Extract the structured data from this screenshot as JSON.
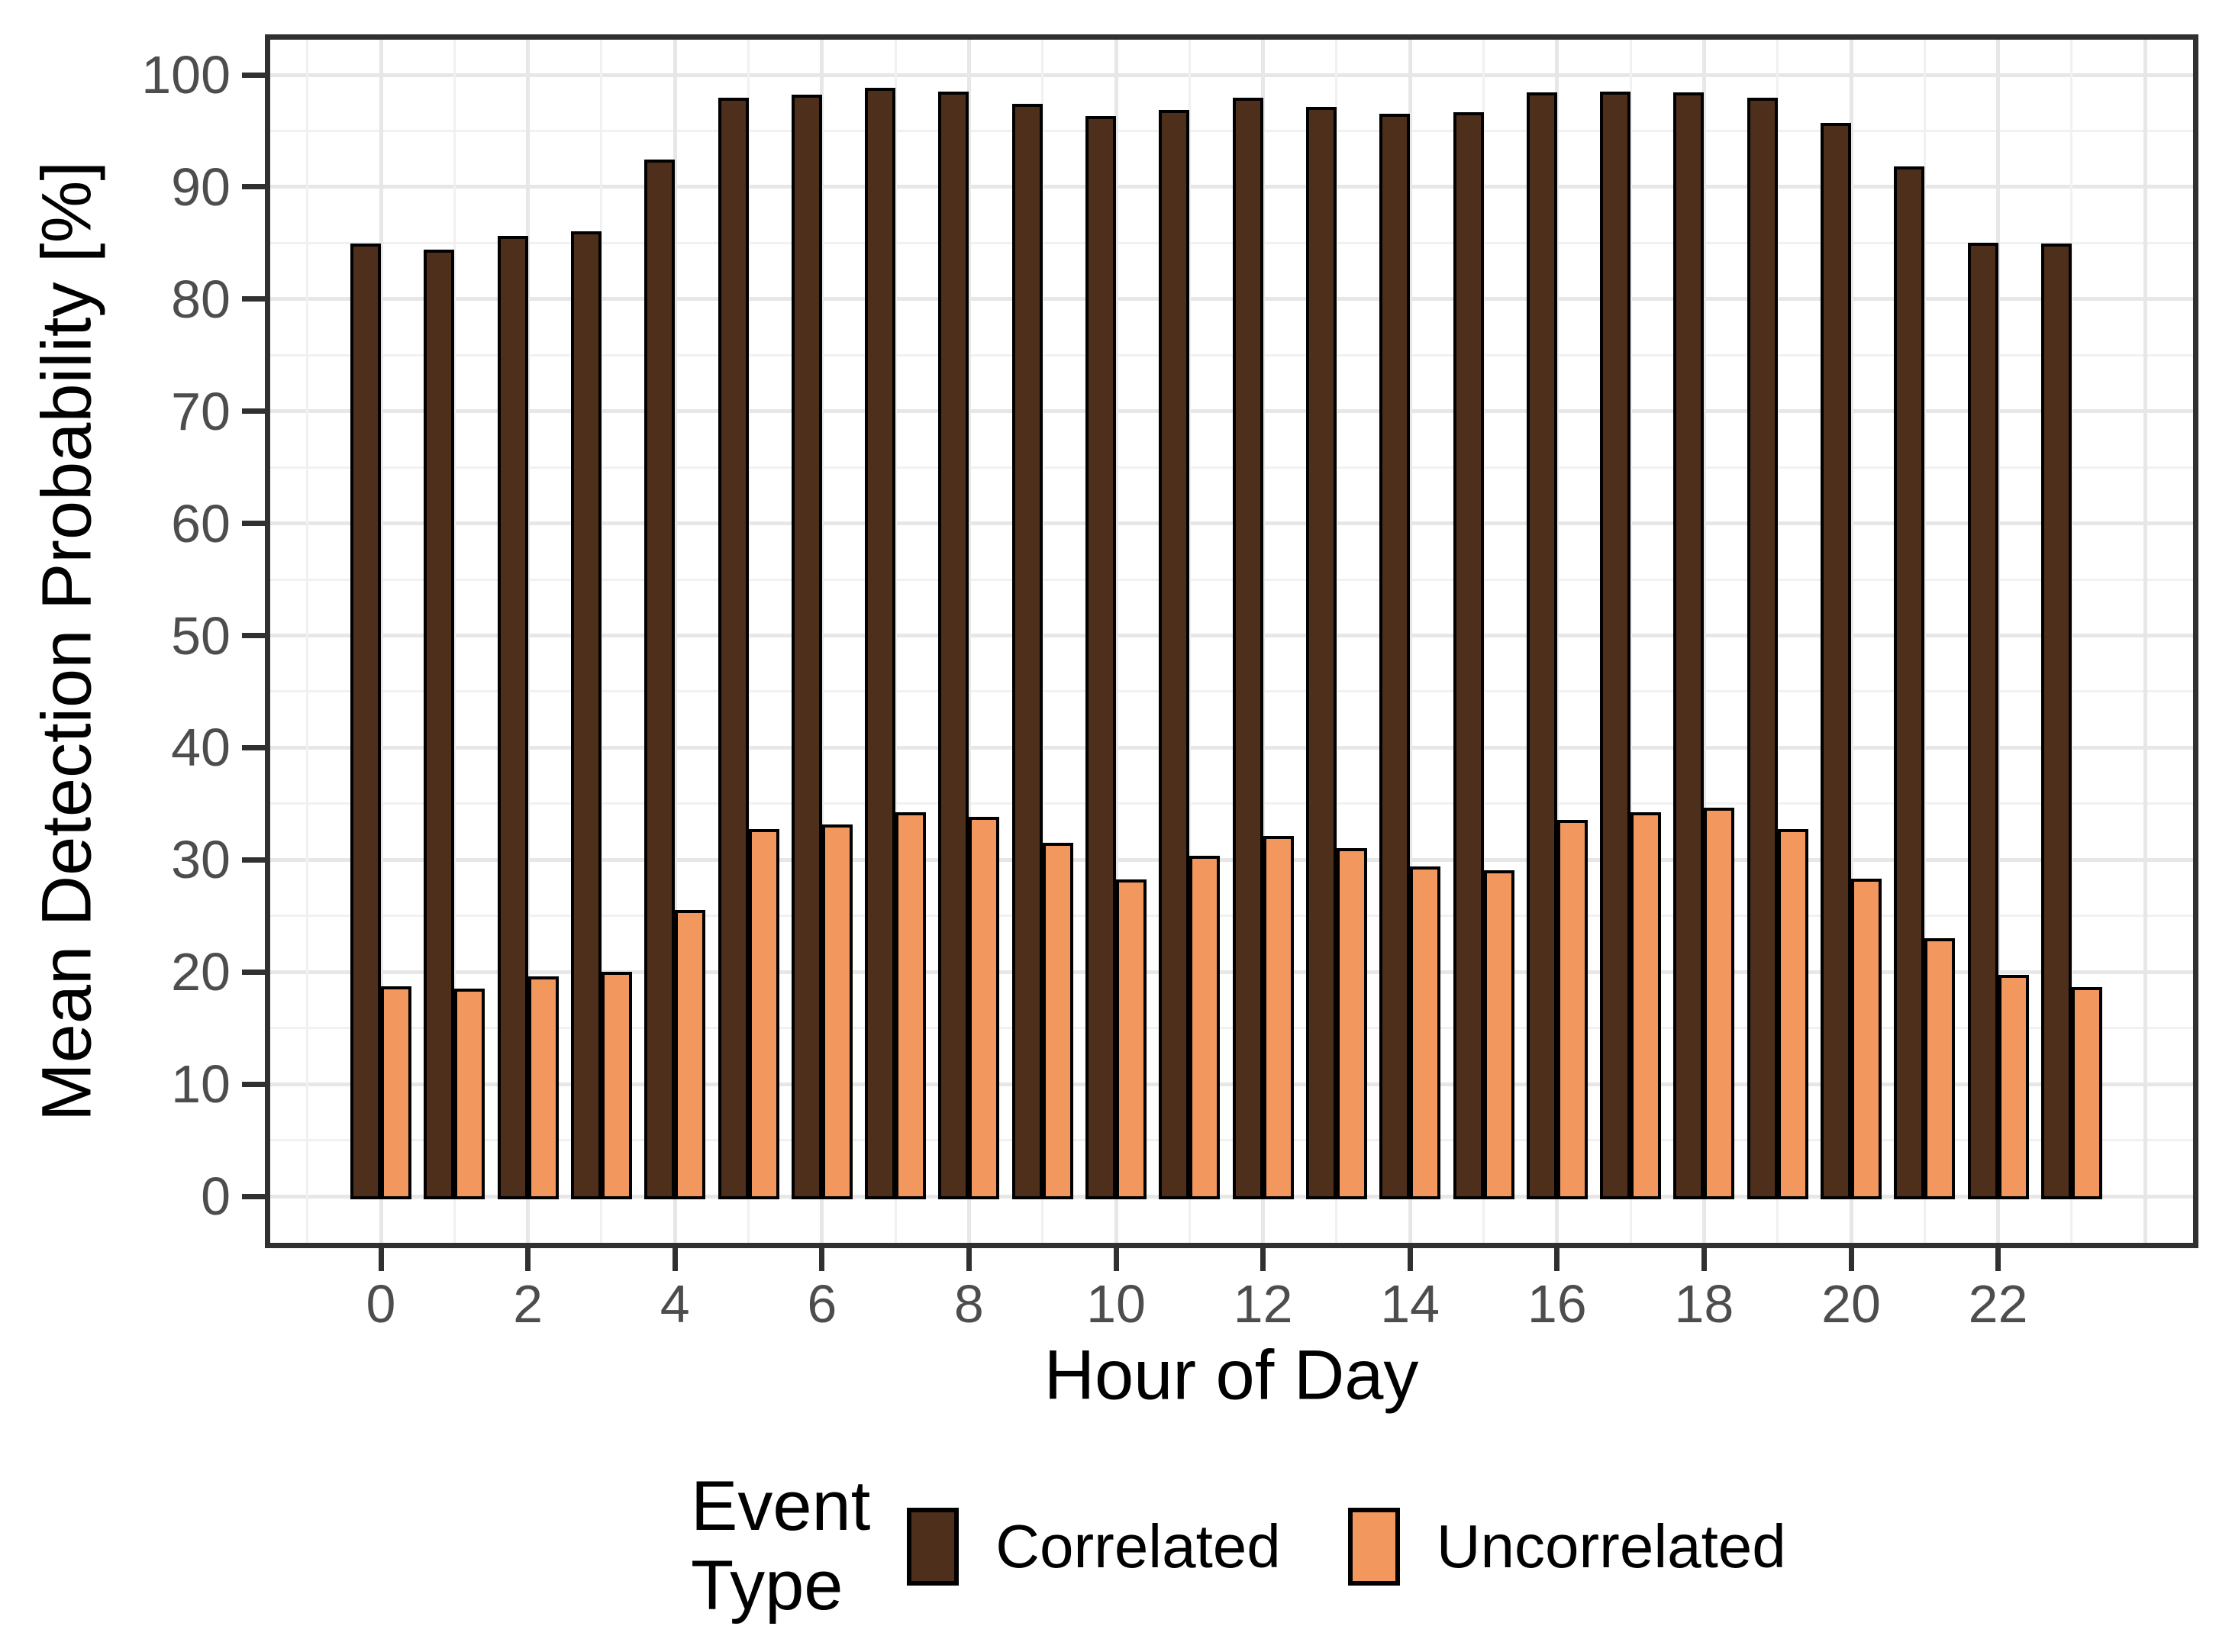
{
  "chart_data": {
    "type": "bar",
    "title": "",
    "xlabel": "Hour of Day",
    "ylabel": "Mean Detection Probability [%]",
    "legend_title": "Event\nType",
    "legend_position": "bottom",
    "grid": true,
    "ylim": [
      0,
      100
    ],
    "xlim": [
      -1.5,
      24.6
    ],
    "categories": [
      0,
      1,
      2,
      3,
      4,
      5,
      6,
      7,
      8,
      9,
      10,
      11,
      12,
      13,
      14,
      15,
      16,
      17,
      18,
      19,
      20,
      21,
      22,
      23
    ],
    "x_tick_labels": [
      0,
      2,
      4,
      6,
      8,
      10,
      12,
      14,
      16,
      18,
      20,
      22
    ],
    "y_tick_labels": [
      0,
      10,
      20,
      30,
      40,
      50,
      60,
      70,
      80,
      90,
      100
    ],
    "y_grid_major": [
      0,
      10,
      20,
      30,
      40,
      50,
      60,
      70,
      80,
      90,
      100
    ],
    "y_grid_minor": [
      5,
      15,
      25,
      35,
      45,
      55,
      65,
      75,
      85,
      95
    ],
    "x_grid_major": [
      0,
      2,
      4,
      6,
      8,
      10,
      12,
      14,
      16,
      18,
      20,
      22,
      24
    ],
    "x_grid_minor": [
      -1,
      1,
      3,
      5,
      7,
      9,
      11,
      13,
      15,
      17,
      19,
      21,
      23
    ],
    "bar_border_color": "#000000",
    "series": [
      {
        "name": "Correlated",
        "color": "#4e2f1b",
        "values": [
          84.8,
          84.3,
          85.5,
          85.9,
          92.3,
          97.8,
          98.1,
          98.7,
          98.4,
          97.3,
          96.2,
          96.7,
          97.8,
          97.0,
          96.4,
          96.5,
          98.3,
          98.4,
          98.3,
          97.8,
          95.6,
          91.7,
          84.9,
          84.8
        ]
      },
      {
        "name": "Uncorrelated",
        "color": "#f2985f",
        "values": [
          18.6,
          18.4,
          19.5,
          19.9,
          25.4,
          32.6,
          33.0,
          34.1,
          33.7,
          31.4,
          28.1,
          30.2,
          32.0,
          30.9,
          29.3,
          28.9,
          33.4,
          34.1,
          34.5,
          32.6,
          28.2,
          22.9,
          19.6,
          18.5
        ]
      }
    ]
  }
}
